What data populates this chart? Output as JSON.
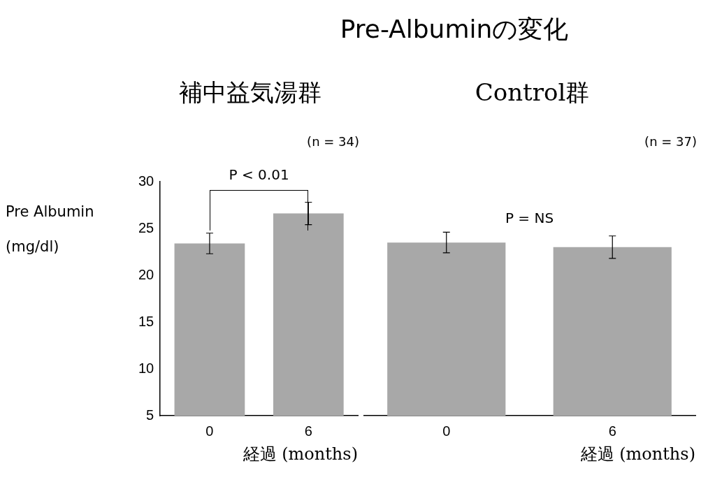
{
  "chart_data": [
    {
      "type": "bar",
      "subtitle": "補中益気湯群",
      "xlabel": "経過 (months)",
      "ylabel": "Pre Albumin (mg/dl)",
      "categories": [
        "0",
        "6"
      ],
      "values": [
        23.4,
        26.6
      ],
      "errors": [
        1.1,
        1.2
      ],
      "color": "#a8a8a8",
      "ylim": [
        5,
        30
      ],
      "yticks": [
        5,
        10,
        15,
        20,
        25,
        30
      ],
      "grid": false,
      "legend": false,
      "annotations": [
        "(n = 34)",
        "P < 0.01"
      ]
    },
    {
      "type": "bar",
      "title": "Pre-Albuminの変化",
      "subtitle": "Control群",
      "xlabel": "経過 (months)",
      "categories": [
        "0",
        "6"
      ],
      "values": [
        23.5,
        23.0
      ],
      "errors": [
        1.1,
        1.2
      ],
      "color": "#a8a8a8",
      "ylim": [
        5,
        30
      ],
      "yticks": [
        5,
        10,
        15,
        20,
        25,
        30
      ],
      "grid": false,
      "legend": false,
      "tick_labels": "x",
      "annotations": [
        "(n = 37)",
        "P = NS"
      ]
    }
  ]
}
